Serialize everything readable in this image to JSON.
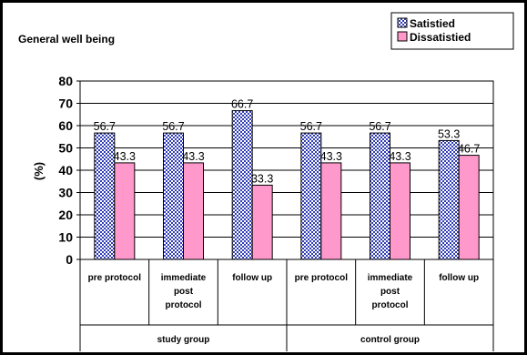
{
  "chart_data": {
    "type": "bar",
    "title": "General well being",
    "ylabel": "(%)",
    "xlabel": "",
    "ylim": [
      0,
      80
    ],
    "yticks": [
      0,
      10,
      20,
      30,
      40,
      50,
      60,
      70,
      80
    ],
    "grid": true,
    "legend": "top-right",
    "categories": [
      "pre protocol",
      "immediate post protocol",
      "follow up",
      "pre protocol",
      "immediate post protocol",
      "follow up"
    ],
    "groups": [
      {
        "name": "study group",
        "span": [
          0,
          2
        ]
      },
      {
        "name": "control group",
        "span": [
          3,
          5
        ]
      }
    ],
    "series": [
      {
        "name": "Satistied",
        "color": "#3a3fbf",
        "values": [
          56.7,
          56.7,
          66.7,
          56.7,
          56.7,
          53.3
        ]
      },
      {
        "name": "Dissatistied",
        "color": "#ff99cc",
        "values": [
          43.3,
          43.3,
          33.3,
          43.3,
          43.3,
          46.7
        ]
      }
    ]
  }
}
